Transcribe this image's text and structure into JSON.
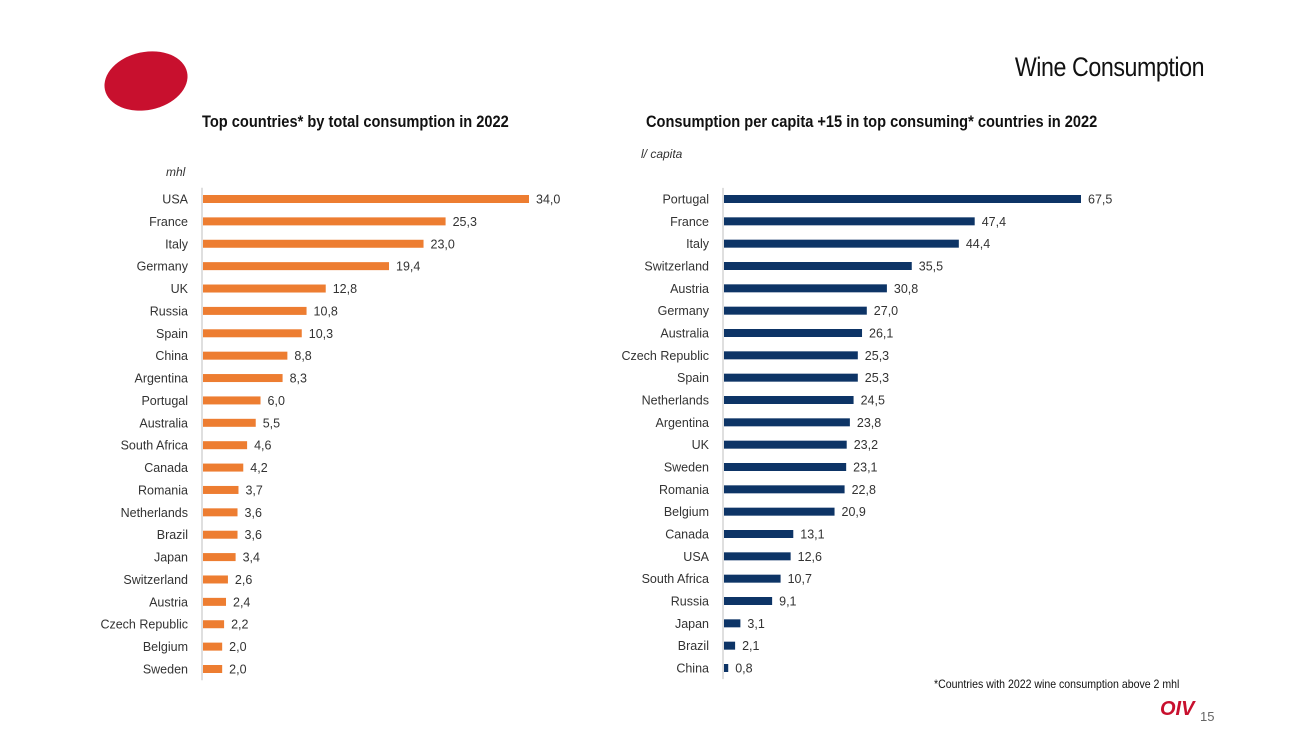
{
  "page": {
    "title": "Wine Consumption",
    "footnote": "*Countries with 2022 wine consumption above 2 mhl",
    "logo_text": "OIV",
    "page_number": "15",
    "brand_color": "#c8102e"
  },
  "chart_data": [
    {
      "type": "bar",
      "orientation": "horizontal",
      "title": "Top countries* by total consumption in 2022",
      "unit": "mhl",
      "color": "#ed7d31",
      "xlim": [
        0,
        34.0
      ],
      "grid": false,
      "categories": [
        "USA",
        "France",
        "Italy",
        "Germany",
        "UK",
        "Russia",
        "Spain",
        "China",
        "Argentina",
        "Portugal",
        "Australia",
        "South Africa",
        "Canada",
        "Romania",
        "Netherlands",
        "Brazil",
        "Japan",
        "Switzerland",
        "Austria",
        "Czech Republic",
        "Belgium",
        "Sweden"
      ],
      "values": [
        34.0,
        25.3,
        23.0,
        19.4,
        12.8,
        10.8,
        10.3,
        8.8,
        8.3,
        6.0,
        5.5,
        4.6,
        4.2,
        3.7,
        3.6,
        3.6,
        3.4,
        2.6,
        2.4,
        2.2,
        2.0,
        2.0
      ],
      "value_labels": [
        "34,0",
        "25,3",
        "23,0",
        "19,4",
        "12,8",
        "10,8",
        "10,3",
        "8,8",
        "8,3",
        "6,0",
        "5,5",
        "4,6",
        "4,2",
        "3,7",
        "3,6",
        "3,6",
        "3,4",
        "2,6",
        "2,4",
        "2,2",
        "2,0",
        "2,0"
      ]
    },
    {
      "type": "bar",
      "orientation": "horizontal",
      "title": "Consumption per capita +15 in top consuming* countries in 2022",
      "unit": "l/ capita",
      "color": "#0d3466",
      "xlim": [
        0,
        67.5
      ],
      "grid": false,
      "categories": [
        "Portugal",
        "France",
        "Italy",
        "Switzerland",
        "Austria",
        "Germany",
        "Australia",
        "Czech Republic",
        "Spain",
        "Netherlands",
        "Argentina",
        "UK",
        "Sweden",
        "Romania",
        "Belgium",
        "Canada",
        "USA",
        "South Africa",
        "Russia",
        "Japan",
        "Brazil",
        "China"
      ],
      "values": [
        67.5,
        47.4,
        44.4,
        35.5,
        30.8,
        27.0,
        26.1,
        25.3,
        25.3,
        24.5,
        23.8,
        23.2,
        23.1,
        22.8,
        20.9,
        13.1,
        12.6,
        10.7,
        9.1,
        3.1,
        2.1,
        0.8
      ],
      "value_labels": [
        "67,5",
        "47,4",
        "44,4",
        "35,5",
        "30,8",
        "27,0",
        "26,1",
        "25,3",
        "25,3",
        "24,5",
        "23,8",
        "23,2",
        "23,1",
        "22,8",
        "20,9",
        "13,1",
        "12,6",
        "10,7",
        "9,1",
        "3,1",
        "2,1",
        "0,8"
      ]
    }
  ]
}
